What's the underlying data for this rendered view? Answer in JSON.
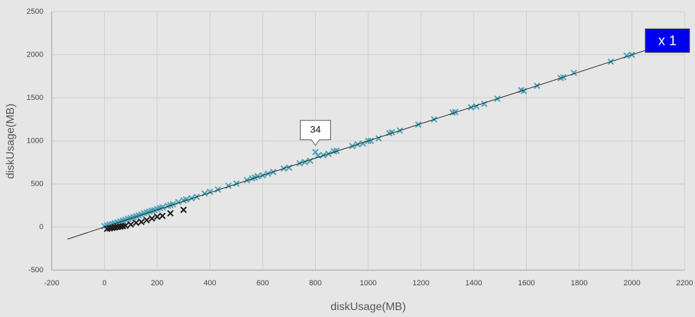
{
  "chart_data": {
    "type": "scatter",
    "xlabel": "diskUsage(MB)",
    "ylabel": "diskUsage(MB)",
    "xlim": [
      -200,
      2200
    ],
    "ylim": [
      -500,
      2500
    ],
    "xticks": [
      -200,
      0,
      200,
      400,
      600,
      800,
      1000,
      1200,
      1400,
      1600,
      1800,
      2000,
      2200
    ],
    "yticks": [
      -500,
      0,
      500,
      1000,
      1500,
      2000,
      2500
    ],
    "grid": true,
    "zoom_label": "x 1",
    "trendline": {
      "color": "#222222",
      "x": [
        -140,
        2050
      ],
      "y": [
        -140,
        2050
      ]
    },
    "annotations": [
      {
        "text": "34",
        "x": 800,
        "y": 870
      }
    ],
    "series": [
      {
        "color": "#4aa3b8",
        "x": [
          0,
          10,
          20,
          30,
          40,
          50,
          60,
          70,
          80,
          90,
          100,
          110,
          120,
          130,
          140,
          150,
          160,
          170,
          180,
          190,
          200,
          210,
          220,
          240,
          250,
          260,
          280,
          300,
          310,
          330,
          350,
          380,
          400,
          430,
          470,
          500,
          540,
          560,
          570,
          580,
          600,
          620,
          640,
          680,
          700,
          740,
          760,
          780,
          800,
          810,
          830,
          850,
          870,
          880,
          940,
          960,
          980,
          1000,
          1010,
          1040,
          1080,
          1090,
          1120,
          1190,
          1250,
          1320,
          1330,
          1390,
          1410,
          1440,
          1490,
          1580,
          1590,
          1640,
          1730,
          1740,
          1780,
          1920,
          1980,
          2000
        ],
        "y": [
          10,
          20,
          30,
          35,
          45,
          55,
          65,
          75,
          85,
          95,
          105,
          115,
          125,
          135,
          145,
          160,
          170,
          180,
          190,
          195,
          210,
          220,
          230,
          245,
          255,
          265,
          290,
          310,
          320,
          335,
          350,
          390,
          410,
          435,
          480,
          505,
          545,
          565,
          575,
          590,
          600,
          620,
          640,
          680,
          690,
          740,
          755,
          770,
          870,
          830,
          835,
          850,
          880,
          885,
          940,
          960,
          970,
          1000,
          1000,
          1030,
          1090,
          1100,
          1120,
          1190,
          1250,
          1330,
          1335,
          1390,
          1400,
          1430,
          1490,
          1590,
          1580,
          1640,
          1730,
          1740,
          1790,
          1920,
          1990,
          2000
        ]
      },
      {
        "color": "#1a1a1a",
        "x": [
          10,
          20,
          30,
          40,
          50,
          60,
          70,
          80,
          100,
          120,
          140,
          160,
          180,
          200,
          220,
          250,
          300
        ],
        "y": [
          -20,
          -15,
          -10,
          -5,
          0,
          5,
          10,
          15,
          30,
          50,
          60,
          80,
          100,
          120,
          130,
          160,
          200
        ]
      }
    ]
  }
}
